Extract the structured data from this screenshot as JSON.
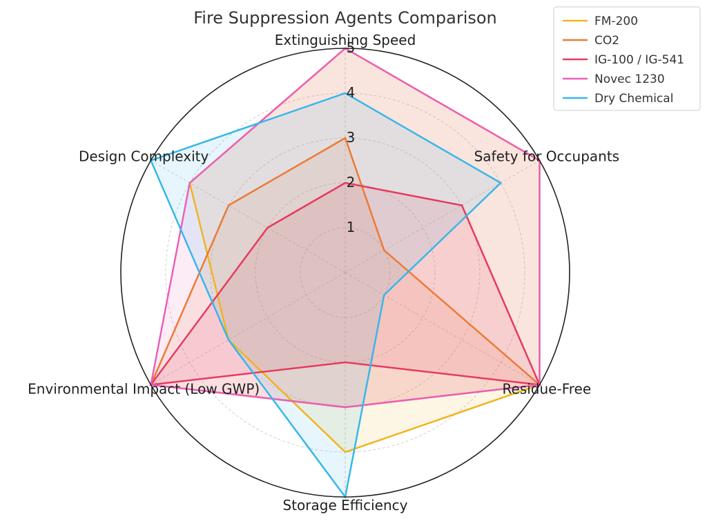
{
  "chart_data": {
    "type": "radar",
    "title": "Fire Suppression Agents Comparison",
    "axes": [
      "Extinguishing Speed",
      "Safety for Occupants",
      "Residue-Free",
      "Storage Efficiency",
      "Environmental Impact (Low GWP)",
      "Design Complexity"
    ],
    "rlim": [
      0,
      5
    ],
    "ticks": [
      "1",
      "2",
      "3",
      "4",
      "5"
    ],
    "grid": true,
    "legend_position": "top-right",
    "series": [
      {
        "name": "FM-200",
        "color": "#f0b41e",
        "values": [
          5,
          5,
          5,
          4,
          3,
          4
        ]
      },
      {
        "name": "CO2",
        "color": "#ec7a35",
        "values": [
          3,
          1,
          5,
          3,
          5,
          3
        ]
      },
      {
        "name": "IG-100 / IG-541",
        "color": "#e63a5e",
        "values": [
          2,
          3,
          5,
          2,
          5,
          2
        ]
      },
      {
        "name": "Novec 1230",
        "color": "#ea60b8",
        "values": [
          5,
          5,
          5,
          3,
          5,
          4
        ]
      },
      {
        "name": "Dry Chemical",
        "color": "#36b7ea",
        "values": [
          4,
          4,
          1,
          5,
          3,
          5
        ]
      }
    ]
  }
}
